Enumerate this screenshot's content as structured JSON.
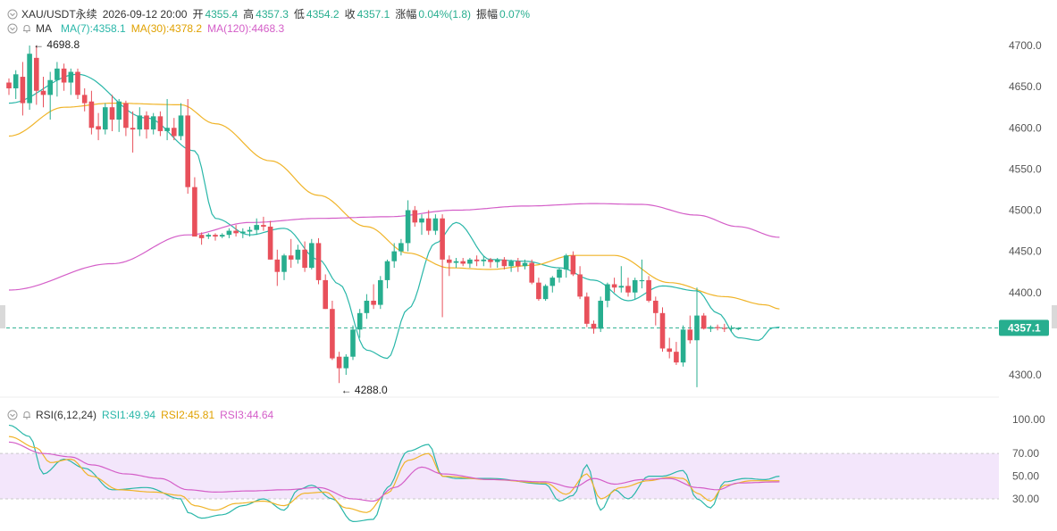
{
  "header": {
    "symbol": "XAU/USDT永续",
    "datetime": "2026-09-12 20:00",
    "open_label": "开",
    "open": "4355.4",
    "high_label": "高",
    "high": "4357.3",
    "low_label": "低",
    "low": "4354.2",
    "close_label": "收",
    "close": "4357.1",
    "change_label": "涨幅",
    "change": "0.04%(1.8)",
    "amplitude_label": "振幅",
    "amplitude": "0.07%"
  },
  "ma_legend": {
    "title": "MA",
    "items": [
      {
        "label": "MA(7):4358.1",
        "color": "#2ab7a9"
      },
      {
        "label": "MA(30):4378.2",
        "color": "#f0b429"
      },
      {
        "label": "MA(120):4468.3",
        "color": "#d45ec8"
      }
    ]
  },
  "rsi_legend": {
    "title": "RSI(6,12,24)",
    "items": [
      {
        "label": "RSI1:49.94",
        "color": "#2ab7a9"
      },
      {
        "label": "RSI2:45.81",
        "color": "#f0b429"
      },
      {
        "label": "RSI3:44.64",
        "color": "#d45ec8"
      }
    ]
  },
  "annotations": {
    "high_marker": "4698.8",
    "low_marker": "4288.0"
  },
  "current_price": "4357.1",
  "colors": {
    "up": "#27ae8f",
    "down": "#e8505b",
    "ma7": "#2ab7a9",
    "ma30": "#f0b429",
    "ma120": "#d45ec8",
    "rsi_band": "#f3e6fb"
  },
  "chart_data": {
    "type": "candlestick",
    "price_axis": {
      "ticks": [
        4700.0,
        4650.0,
        4600.0,
        4550.0,
        4500.0,
        4450.0,
        4400.0,
        4300.0
      ],
      "tick_labels": [
        "4700.0",
        "4650.0",
        "4600.0",
        "4550.0",
        "4500.0",
        "4450.0",
        "4400.0",
        "4300.0"
      ],
      "range": [
        4278,
        4730
      ]
    },
    "rsi_axis": {
      "ticks": [
        100,
        70,
        50,
        30
      ],
      "tick_labels": [
        "100.00",
        "70.00",
        "50.00",
        "30.00"
      ],
      "range": [
        0,
        100
      ],
      "band": [
        30,
        70
      ]
    },
    "candles": [
      [
        4655,
        4660,
        4640,
        4648
      ],
      [
        4648,
        4670,
        4635,
        4665
      ],
      [
        4662,
        4680,
        4615,
        4630
      ],
      [
        4630,
        4700,
        4622,
        4690
      ],
      [
        4685,
        4700,
        4628,
        4645
      ],
      [
        4645,
        4662,
        4625,
        4640
      ],
      [
        4640,
        4668,
        4610,
        4658
      ],
      [
        4658,
        4680,
        4638,
        4672
      ],
      [
        4672,
        4678,
        4645,
        4655
      ],
      [
        4655,
        4672,
        4640,
        4668
      ],
      [
        4668,
        4672,
        4635,
        4640
      ],
      [
        4640,
        4648,
        4620,
        4630
      ],
      [
        4632,
        4645,
        4592,
        4600
      ],
      [
        4602,
        4618,
        4585,
        4598
      ],
      [
        4598,
        4630,
        4592,
        4625
      ],
      [
        4625,
        4640,
        4596,
        4610
      ],
      [
        4610,
        4635,
        4595,
        4632
      ],
      [
        4630,
        4633,
        4590,
        4600
      ],
      [
        4600,
        4620,
        4570,
        4598
      ],
      [
        4598,
        4625,
        4590,
        4615
      ],
      [
        4615,
        4620,
        4587,
        4598
      ],
      [
        4598,
        4618,
        4592,
        4614
      ],
      [
        4614,
        4620,
        4590,
        4596
      ],
      [
        4596,
        4635,
        4585,
        4600
      ],
      [
        4600,
        4612,
        4585,
        4590
      ],
      [
        4590,
        4630,
        4585,
        4615
      ],
      [
        4615,
        4635,
        4520,
        4528
      ],
      [
        4528,
        4540,
        4468,
        4468
      ],
      [
        4470,
        4473,
        4458,
        4466
      ],
      [
        4468,
        4472,
        4465,
        4470
      ],
      [
        4470,
        4472,
        4463,
        4468
      ],
      [
        4468,
        4472,
        4466,
        4470
      ],
      [
        4470,
        4478,
        4466,
        4475
      ],
      [
        4475,
        4482,
        4468,
        4472
      ],
      [
        4472,
        4478,
        4466,
        4474
      ],
      [
        4474,
        4480,
        4468,
        4476
      ],
      [
        4476,
        4490,
        4470,
        4482
      ],
      [
        4482,
        4492,
        4475,
        4480
      ],
      [
        4480,
        4487,
        4440,
        4440
      ],
      [
        4440,
        4452,
        4408,
        4425
      ],
      [
        4425,
        4447,
        4415,
        4445
      ],
      [
        4445,
        4465,
        4430,
        4440
      ],
      [
        4440,
        4458,
        4435,
        4452
      ],
      [
        4452,
        4462,
        4425,
        4430
      ],
      [
        4430,
        4465,
        4428,
        4460
      ],
      [
        4460,
        4466,
        4410,
        4415
      ],
      [
        4415,
        4422,
        4380,
        4380
      ],
      [
        4380,
        4390,
        4318,
        4320
      ],
      [
        4322,
        4328,
        4290,
        4308
      ],
      [
        4308,
        4325,
        4300,
        4322
      ],
      [
        4322,
        4360,
        4318,
        4355
      ],
      [
        4355,
        4380,
        4345,
        4375
      ],
      [
        4375,
        4398,
        4368,
        4390
      ],
      [
        4390,
        4410,
        4380,
        4385
      ],
      [
        4385,
        4420,
        4380,
        4415
      ],
      [
        4415,
        4440,
        4405,
        4438
      ],
      [
        4438,
        4460,
        4430,
        4450
      ],
      [
        4450,
        4465,
        4445,
        4460
      ],
      [
        4460,
        4512,
        4450,
        4500
      ],
      [
        4500,
        4505,
        4480,
        4485
      ],
      [
        4485,
        4495,
        4470,
        4490
      ],
      [
        4490,
        4500,
        4470,
        4475
      ],
      [
        4475,
        4495,
        4470,
        4490
      ],
      [
        4490,
        4495,
        4370,
        4440
      ],
      [
        4440,
        4445,
        4420,
        4436
      ],
      [
        4436,
        4442,
        4430,
        4438
      ],
      [
        4438,
        4442,
        4432,
        4435
      ],
      [
        4435,
        4442,
        4430,
        4440
      ],
      [
        4440,
        4445,
        4432,
        4438
      ],
      [
        4438,
        4444,
        4432,
        4440
      ],
      [
        4440,
        4442,
        4430,
        4437
      ],
      [
        4437,
        4442,
        4430,
        4440
      ],
      [
        4440,
        4443,
        4428,
        4432
      ],
      [
        4432,
        4440,
        4425,
        4438
      ],
      [
        4438,
        4442,
        4425,
        4432
      ],
      [
        4432,
        4440,
        4428,
        4436
      ],
      [
        4436,
        4440,
        4410,
        4412
      ],
      [
        4412,
        4418,
        4390,
        4392
      ],
      [
        4392,
        4410,
        4390,
        4408
      ],
      [
        4408,
        4420,
        4400,
        4418
      ],
      [
        4418,
        4430,
        4412,
        4428
      ],
      [
        4428,
        4447,
        4418,
        4445
      ],
      [
        4445,
        4450,
        4420,
        4422
      ],
      [
        4422,
        4432,
        4392,
        4395
      ],
      [
        4395,
        4400,
        4358,
        4362
      ],
      [
        4362,
        4366,
        4350,
        4356
      ],
      [
        4356,
        4395,
        4352,
        4390
      ],
      [
        4390,
        4412,
        4382,
        4410
      ],
      [
        4410,
        4418,
        4400,
        4406
      ],
      [
        4406,
        4432,
        4400,
        4408
      ],
      [
        4408,
        4418,
        4395,
        4400
      ],
      [
        4400,
        4418,
        4392,
        4415
      ],
      [
        4415,
        4440,
        4405,
        4415
      ],
      [
        4415,
        4420,
        4388,
        4390
      ],
      [
        4390,
        4395,
        4360,
        4375
      ],
      [
        4375,
        4382,
        4328,
        4332
      ],
      [
        4332,
        4345,
        4320,
        4328
      ],
      [
        4328,
        4340,
        4312,
        4315
      ],
      [
        4315,
        4360,
        4310,
        4355
      ],
      [
        4355,
        4372,
        4338,
        4342
      ],
      [
        4342,
        4406,
        4285,
        4372
      ],
      [
        4372,
        4375,
        4355,
        4356
      ],
      [
        4356,
        4360,
        4352,
        4358
      ],
      [
        4358,
        4361,
        4354,
        4357
      ],
      [
        4357,
        4362,
        4352,
        4356
      ],
      [
        4356,
        4360,
        4352,
        4357
      ],
      [
        4355.4,
        4357.3,
        4354.2,
        4357.1
      ]
    ],
    "series": [
      {
        "name": "MA(7)",
        "color": "#2ab7a9",
        "anchors": [
          [
            0,
            4630
          ],
          [
            10,
            4665
          ],
          [
            20,
            4612
          ],
          [
            27,
            4572
          ],
          [
            30,
            4490
          ],
          [
            35,
            4470
          ],
          [
            40,
            4478
          ],
          [
            45,
            4440
          ],
          [
            48,
            4410
          ],
          [
            52,
            4330
          ],
          [
            55,
            4320
          ],
          [
            58,
            4380
          ],
          [
            62,
            4460
          ],
          [
            65,
            4485
          ],
          [
            70,
            4440
          ],
          [
            75,
            4438
          ],
          [
            80,
            4430
          ],
          [
            85,
            4415
          ],
          [
            90,
            4390
          ],
          [
            95,
            4408
          ],
          [
            100,
            4402
          ],
          [
            103,
            4375
          ],
          [
            106,
            4345
          ],
          [
            109,
            4342
          ],
          [
            111,
            4357
          ],
          [
            112,
            4358
          ]
        ]
      },
      {
        "name": "MA(30)",
        "color": "#f0b429",
        "anchors": [
          [
            0,
            4590
          ],
          [
            8,
            4625
          ],
          [
            15,
            4630
          ],
          [
            25,
            4628
          ],
          [
            30,
            4605
          ],
          [
            38,
            4560
          ],
          [
            45,
            4518
          ],
          [
            52,
            4480
          ],
          [
            58,
            4448
          ],
          [
            64,
            4430
          ],
          [
            70,
            4428
          ],
          [
            76,
            4433
          ],
          [
            82,
            4445
          ],
          [
            88,
            4445
          ],
          [
            96,
            4412
          ],
          [
            104,
            4395
          ],
          [
            110,
            4385
          ],
          [
            112,
            4380
          ]
        ]
      },
      {
        "name": "MA(120)",
        "color": "#d45ec8",
        "anchors": [
          [
            0,
            4403
          ],
          [
            15,
            4435
          ],
          [
            26,
            4470
          ],
          [
            35,
            4485
          ],
          [
            45,
            4490
          ],
          [
            55,
            4492
          ],
          [
            65,
            4500
          ],
          [
            75,
            4505
          ],
          [
            85,
            4508
          ],
          [
            92,
            4507
          ],
          [
            100,
            4494
          ],
          [
            106,
            4480
          ],
          [
            112,
            4467
          ]
        ]
      },
      {
        "name": "RSI1",
        "color": "#2ab7a9",
        "anchors": [
          [
            0,
            95
          ],
          [
            3,
            85
          ],
          [
            5,
            52
          ],
          [
            8,
            65
          ],
          [
            11,
            57
          ],
          [
            15,
            38
          ],
          [
            20,
            40
          ],
          [
            25,
            30
          ],
          [
            26,
            18
          ],
          [
            28,
            13
          ],
          [
            31,
            16
          ],
          [
            34,
            24
          ],
          [
            37,
            30
          ],
          [
            40,
            20
          ],
          [
            42,
            38
          ],
          [
            44,
            42
          ],
          [
            47,
            30
          ],
          [
            50,
            10
          ],
          [
            53,
            12
          ],
          [
            55,
            40
          ],
          [
            58,
            72
          ],
          [
            61,
            78
          ],
          [
            63,
            50
          ],
          [
            65,
            48
          ],
          [
            70,
            48
          ],
          [
            78,
            43
          ],
          [
            80,
            28
          ],
          [
            82,
            33
          ],
          [
            84,
            60
          ],
          [
            86,
            20
          ],
          [
            88,
            38
          ],
          [
            90,
            30
          ],
          [
            93,
            50
          ],
          [
            95,
            50
          ],
          [
            98,
            55
          ],
          [
            100,
            30
          ],
          [
            102,
            22
          ],
          [
            104,
            45
          ],
          [
            107,
            48
          ],
          [
            110,
            47
          ],
          [
            112,
            50
          ]
        ]
      },
      {
        "name": "RSI2",
        "color": "#f0b429",
        "anchors": [
          [
            0,
            85
          ],
          [
            4,
            75
          ],
          [
            6,
            62
          ],
          [
            9,
            65
          ],
          [
            12,
            50
          ],
          [
            16,
            38
          ],
          [
            21,
            36
          ],
          [
            25,
            33
          ],
          [
            27,
            24
          ],
          [
            30,
            20
          ],
          [
            33,
            26
          ],
          [
            37,
            28
          ],
          [
            40,
            24
          ],
          [
            43,
            35
          ],
          [
            46,
            36
          ],
          [
            49,
            22
          ],
          [
            52,
            18
          ],
          [
            55,
            35
          ],
          [
            58,
            64
          ],
          [
            61,
            70
          ],
          [
            63,
            50
          ],
          [
            70,
            47
          ],
          [
            78,
            44
          ],
          [
            81,
            34
          ],
          [
            84,
            52
          ],
          [
            86,
            30
          ],
          [
            89,
            40
          ],
          [
            93,
            46
          ],
          [
            96,
            49
          ],
          [
            98,
            48
          ],
          [
            100,
            35
          ],
          [
            102,
            28
          ],
          [
            104,
            42
          ],
          [
            108,
            46
          ],
          [
            112,
            46
          ]
        ]
      },
      {
        "name": "RSI3",
        "color": "#d45ec8",
        "anchors": [
          [
            0,
            80
          ],
          [
            5,
            70
          ],
          [
            9,
            67
          ],
          [
            12,
            60
          ],
          [
            17,
            52
          ],
          [
            22,
            48
          ],
          [
            26,
            38
          ],
          [
            30,
            36
          ],
          [
            35,
            37
          ],
          [
            40,
            38
          ],
          [
            45,
            40
          ],
          [
            50,
            30
          ],
          [
            53,
            28
          ],
          [
            56,
            40
          ],
          [
            60,
            58
          ],
          [
            63,
            52
          ],
          [
            70,
            47
          ],
          [
            78,
            45
          ],
          [
            82,
            40
          ],
          [
            85,
            48
          ],
          [
            88,
            43
          ],
          [
            92,
            47
          ],
          [
            96,
            48
          ],
          [
            100,
            40
          ],
          [
            103,
            38
          ],
          [
            106,
            44
          ],
          [
            112,
            45
          ]
        ]
      }
    ]
  }
}
